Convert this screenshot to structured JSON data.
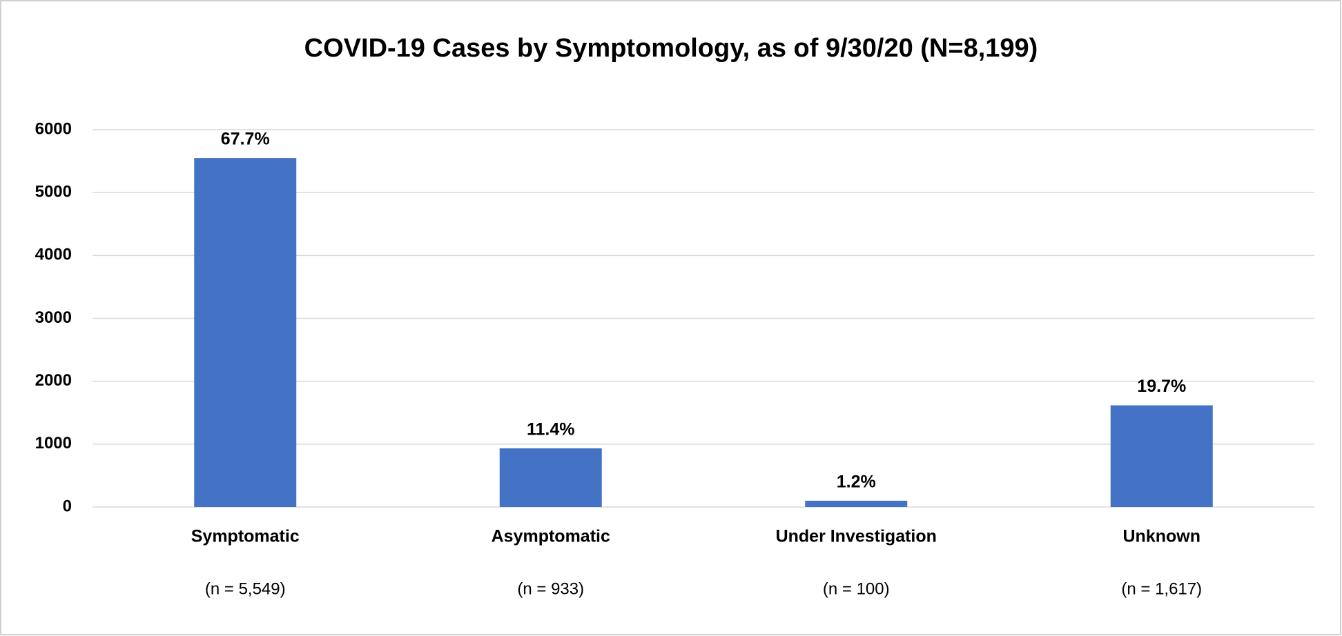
{
  "chart_data": {
    "type": "bar",
    "title": "COVID-19 Cases by Symptomology, as of 9/30/20 (N=8,199)",
    "categories": [
      "Symptomatic",
      "Asymptomatic",
      "Under Investigation",
      "Unknown"
    ],
    "values": [
      5549,
      933,
      100,
      1617
    ],
    "value_labels": [
      "(n = 5,549)",
      "(n = 933)",
      "(n = 100)",
      "(n = 1,617)"
    ],
    "percent_labels": [
      "67.7%",
      "11.4%",
      "1.2%",
      "19.7%"
    ],
    "color": "#4472c4",
    "ylim": [
      0,
      6000
    ],
    "yticks": [
      0,
      1000,
      2000,
      3000,
      4000,
      5000,
      6000
    ],
    "grid": true
  }
}
